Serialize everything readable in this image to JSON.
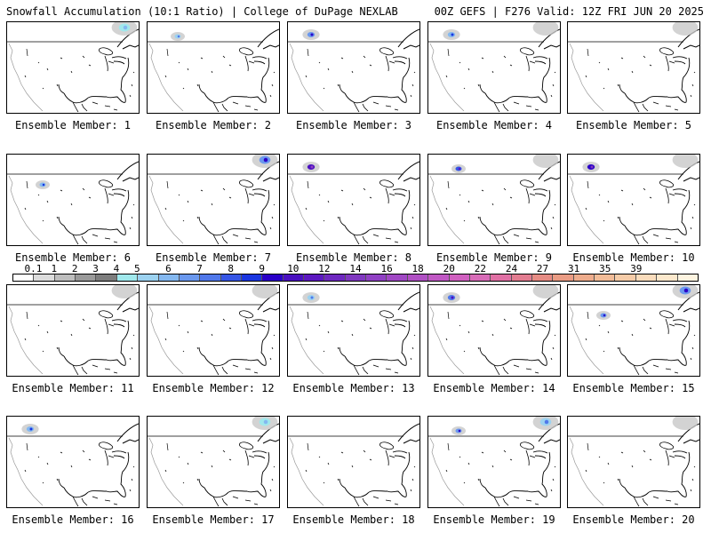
{
  "header": {
    "left": "Snowfall Accumulation (10:1 Ratio) | College of DuPage NEXLAB",
    "right": "00Z GEFS | F276 Valid: 12Z FRI JUN 20 2025"
  },
  "members": [
    {
      "label": "Ensemble Member: 1",
      "snow": [
        {
          "region": "quebec",
          "amount": 3
        }
      ]
    },
    {
      "label": "Ensemble Member: 2",
      "snow": [
        {
          "region": "alberta",
          "amount": 4
        }
      ]
    },
    {
      "label": "Ensemble Member: 3",
      "snow": [
        {
          "region": "bc",
          "amount": 6
        }
      ]
    },
    {
      "label": "Ensemble Member: 4",
      "snow": [
        {
          "region": "bc",
          "amount": 5
        },
        {
          "region": "quebec",
          "amount": 0.5
        }
      ]
    },
    {
      "label": "Ensemble Member: 5",
      "snow": [
        {
          "region": "quebec",
          "amount": 0.5
        }
      ]
    },
    {
      "label": "Ensemble Member: 6",
      "snow": [
        {
          "region": "montana",
          "amount": 5
        }
      ]
    },
    {
      "label": "Ensemble Member: 7",
      "snow": [
        {
          "region": "quebec",
          "amount": 6
        }
      ]
    },
    {
      "label": "Ensemble Member: 8",
      "snow": [
        {
          "region": "bc",
          "amount": 12
        }
      ]
    },
    {
      "label": "Ensemble Member: 9",
      "snow": [
        {
          "region": "alberta",
          "amount": 8
        },
        {
          "region": "quebec",
          "amount": 0.5
        }
      ]
    },
    {
      "label": "Ensemble Member: 10",
      "snow": [
        {
          "region": "bc",
          "amount": 10
        },
        {
          "region": "quebec",
          "amount": 1
        }
      ]
    },
    {
      "label": "Ensemble Member: 11",
      "snow": [
        {
          "region": "quebec",
          "amount": 0.5
        }
      ]
    },
    {
      "label": "Ensemble Member: 12",
      "snow": [
        {
          "region": "quebec",
          "amount": 0.5
        }
      ]
    },
    {
      "label": "Ensemble Member: 13",
      "snow": [
        {
          "region": "bc",
          "amount": 4
        }
      ]
    },
    {
      "label": "Ensemble Member: 14",
      "snow": [
        {
          "region": "bc",
          "amount": 7
        },
        {
          "region": "quebec",
          "amount": 0.5
        }
      ]
    },
    {
      "label": "Ensemble Member: 15",
      "snow": [
        {
          "region": "montana",
          "amount": 6
        },
        {
          "region": "quebec",
          "amount": 6
        }
      ]
    },
    {
      "label": "Ensemble Member: 16",
      "snow": [
        {
          "region": "bc",
          "amount": 5
        }
      ]
    },
    {
      "label": "Ensemble Member: 17",
      "snow": [
        {
          "region": "quebec",
          "amount": 3
        }
      ]
    },
    {
      "label": "Ensemble Member: 18",
      "snow": []
    },
    {
      "label": "Ensemble Member: 19",
      "snow": [
        {
          "region": "alberta",
          "amount": 6
        },
        {
          "region": "quebec",
          "amount": 4
        }
      ]
    },
    {
      "label": "Ensemble Member: 20",
      "snow": [
        {
          "region": "quebec",
          "amount": 0.5
        }
      ]
    }
  ],
  "colorbar": {
    "ticks": [
      "0.1",
      "1",
      "2",
      "3",
      "4",
      "5",
      "6",
      "7",
      "8",
      "9",
      "10",
      "12",
      "14",
      "16",
      "18",
      "20",
      "22",
      "24",
      "27",
      "31",
      "35",
      "39"
    ],
    "colors": [
      "#ffffff",
      "#dcdcdc",
      "#bebebe",
      "#9a9a9a",
      "#7d7d7d",
      "#a0e8ec",
      "#9cd2f0",
      "#84b8f0",
      "#6a98ee",
      "#5078ea",
      "#3656e6",
      "#1a36e0",
      "#2a00c8",
      "#4a10c0",
      "#5c18c0",
      "#6e28c0",
      "#8038c0",
      "#9040c4",
      "#a048c4",
      "#b050c4",
      "#c058c4",
      "#d060c0",
      "#d86cb8",
      "#e070a4",
      "#e27c90",
      "#e68c84",
      "#ea9c84",
      "#eeac8c",
      "#f2bc98",
      "#f6cca8",
      "#fadcbc",
      "#fce8cc",
      "#fef4e0"
    ]
  }
}
